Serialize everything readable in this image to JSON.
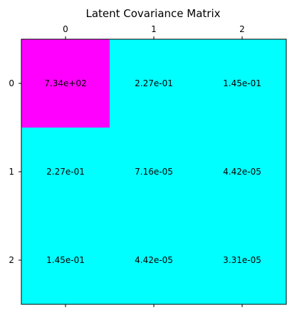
{
  "chart_data": {
    "type": "heatmap",
    "title": "Latent Covariance Matrix",
    "xlabel": "",
    "ylabel": "",
    "x_ticks": [
      "0",
      "1",
      "2"
    ],
    "y_ticks": [
      "0",
      "1",
      "2"
    ],
    "values": [
      [
        734,
        0.227,
        0.145
      ],
      [
        0.227,
        7.16e-05,
        4.42e-05
      ],
      [
        0.145,
        4.42e-05,
        3.31e-05
      ]
    ],
    "value_labels": [
      [
        "7.34e+02",
        "2.27e-01",
        "1.45e-01"
      ],
      [
        "2.27e-01",
        "7.16e-05",
        "4.42e-05"
      ],
      [
        "1.45e-01",
        "4.42e-05",
        "3.31e-05"
      ]
    ],
    "colormap": "cool",
    "color_low": "#00ffff",
    "color_high": "#ff00ff",
    "x_tick_position": "top",
    "grid": false
  }
}
